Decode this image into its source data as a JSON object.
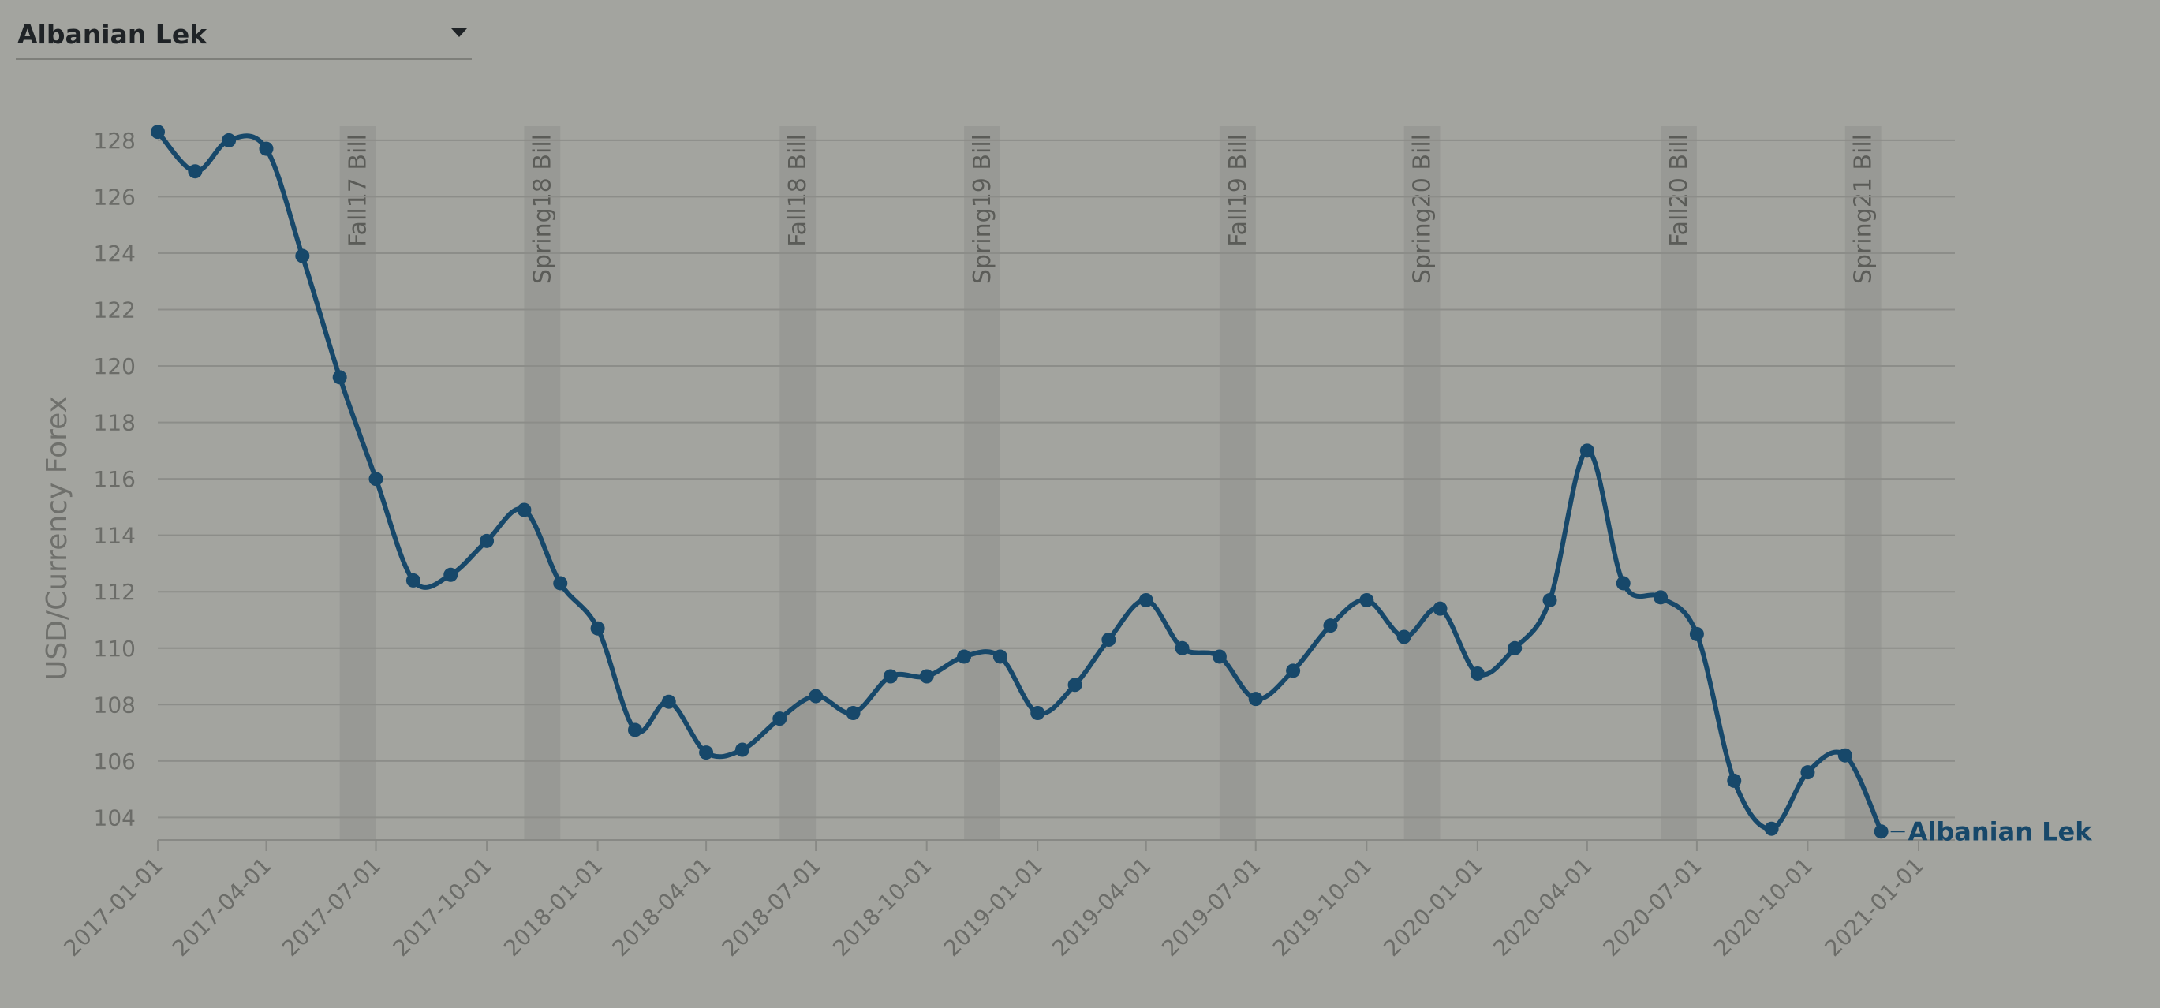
{
  "selector": {
    "value": "Albanian Lek",
    "icon": "caret-down-icon"
  },
  "colors": {
    "line": "#17486a",
    "band": "#8f908c",
    "grid": "#8c8d89",
    "axis": "#888985"
  },
  "chart_data": {
    "type": "line",
    "title": "",
    "xlabel": "",
    "ylabel": "USD/Currency Forex",
    "ylim": [
      103.2,
      128.5
    ],
    "yticks": [
      104,
      106,
      108,
      110,
      112,
      114,
      116,
      118,
      120,
      122,
      124,
      126,
      128
    ],
    "xticks": [
      "2017-01-01",
      "2017-04-01",
      "2017-07-01",
      "2017-10-01",
      "2018-01-01",
      "2018-04-01",
      "2018-07-01",
      "2018-10-01",
      "2019-01-01",
      "2019-04-01",
      "2019-07-01",
      "2019-10-01",
      "2020-01-01",
      "2020-04-01",
      "2020-07-01",
      "2020-10-01",
      "2021-01-01"
    ],
    "grid": true,
    "legend": "none",
    "series": [
      {
        "name": "Albanian Lek",
        "x": [
          "2017-01-01",
          "2017-02-01",
          "2017-03-01",
          "2017-04-01",
          "2017-05-01",
          "2017-06-01",
          "2017-07-01",
          "2017-08-01",
          "2017-09-01",
          "2017-10-01",
          "2017-11-01",
          "2017-12-01",
          "2018-01-01",
          "2018-02-01",
          "2018-03-01",
          "2018-04-01",
          "2018-05-01",
          "2018-06-01",
          "2018-07-01",
          "2018-08-01",
          "2018-09-01",
          "2018-10-01",
          "2018-11-01",
          "2018-12-01",
          "2019-01-01",
          "2019-02-01",
          "2019-03-01",
          "2019-04-01",
          "2019-05-01",
          "2019-06-01",
          "2019-07-01",
          "2019-08-01",
          "2019-09-01",
          "2019-10-01",
          "2019-11-01",
          "2019-12-01",
          "2020-01-01",
          "2020-02-01",
          "2020-03-01",
          "2020-04-01",
          "2020-05-01",
          "2020-06-01",
          "2020-07-01",
          "2020-08-01",
          "2020-09-01",
          "2020-10-01",
          "2020-11-01",
          "2020-12-01"
        ],
        "values": [
          128.3,
          126.9,
          128.0,
          127.7,
          123.9,
          119.6,
          116.0,
          112.4,
          112.6,
          113.8,
          114.9,
          112.3,
          110.7,
          107.1,
          108.1,
          106.3,
          106.4,
          107.5,
          108.3,
          107.7,
          109.0,
          109.0,
          109.7,
          109.7,
          107.7,
          108.7,
          110.3,
          111.7,
          110.0,
          109.7,
          108.2,
          109.2,
          110.8,
          111.7,
          110.4,
          111.4,
          109.1,
          110.0,
          111.7,
          117.0,
          112.3,
          111.8,
          110.5,
          105.3,
          103.6,
          105.6,
          106.2,
          103.5
        ]
      }
    ],
    "bands": [
      {
        "label": "Fall17 Bill",
        "start": "2017-06-01",
        "end": "2017-07-01"
      },
      {
        "label": "Spring18 Bill",
        "start": "2017-11-01",
        "end": "2017-12-01"
      },
      {
        "label": "Fall18 Bill",
        "start": "2018-06-01",
        "end": "2018-07-01"
      },
      {
        "label": "Spring19 Bill",
        "start": "2018-11-01",
        "end": "2018-12-01"
      },
      {
        "label": "Fall19 Bill",
        "start": "2019-06-01",
        "end": "2019-07-01"
      },
      {
        "label": "Spring20 Bill",
        "start": "2019-11-01",
        "end": "2019-12-01"
      },
      {
        "label": "Fall20 Bill",
        "start": "2020-06-01",
        "end": "2020-07-01"
      },
      {
        "label": "Spring21 Bill",
        "start": "2020-11-01",
        "end": "2020-12-01"
      }
    ]
  }
}
